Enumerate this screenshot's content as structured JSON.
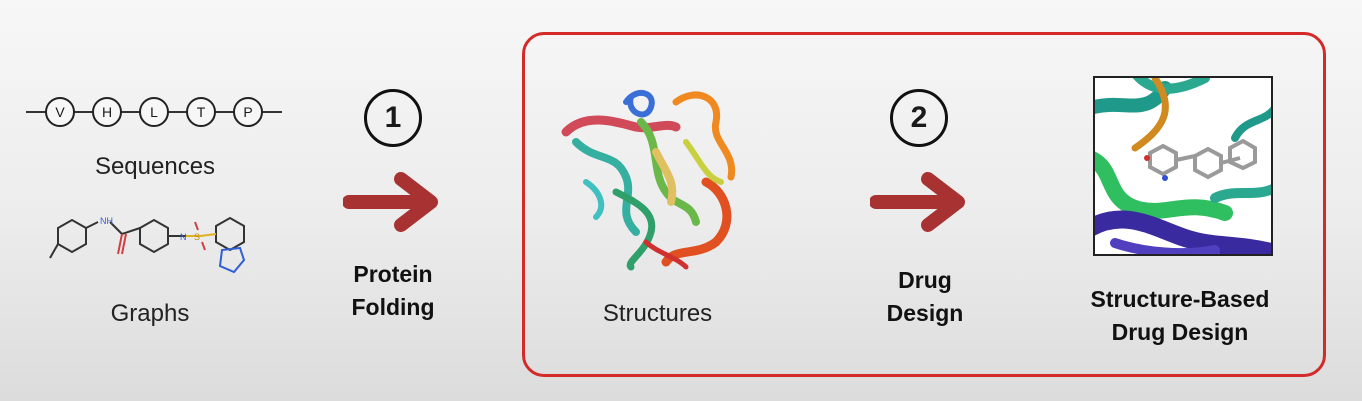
{
  "sequence_residues": [
    "V",
    "H",
    "L",
    "T",
    "P"
  ],
  "left": {
    "sequences_label": "Sequences",
    "graphs_label": "Graphs"
  },
  "step1": {
    "number": "1",
    "label_line1": "Protein",
    "label_line2": "Folding"
  },
  "structures_label": "Structures",
  "step2": {
    "number": "2",
    "label_line1": "Drug",
    "label_line2": "Design"
  },
  "result": {
    "line1": "Structure-Based",
    "line2": "Drug Design"
  },
  "colors": {
    "arrow": "#a83232",
    "highlight_box": "#d42a2a"
  }
}
